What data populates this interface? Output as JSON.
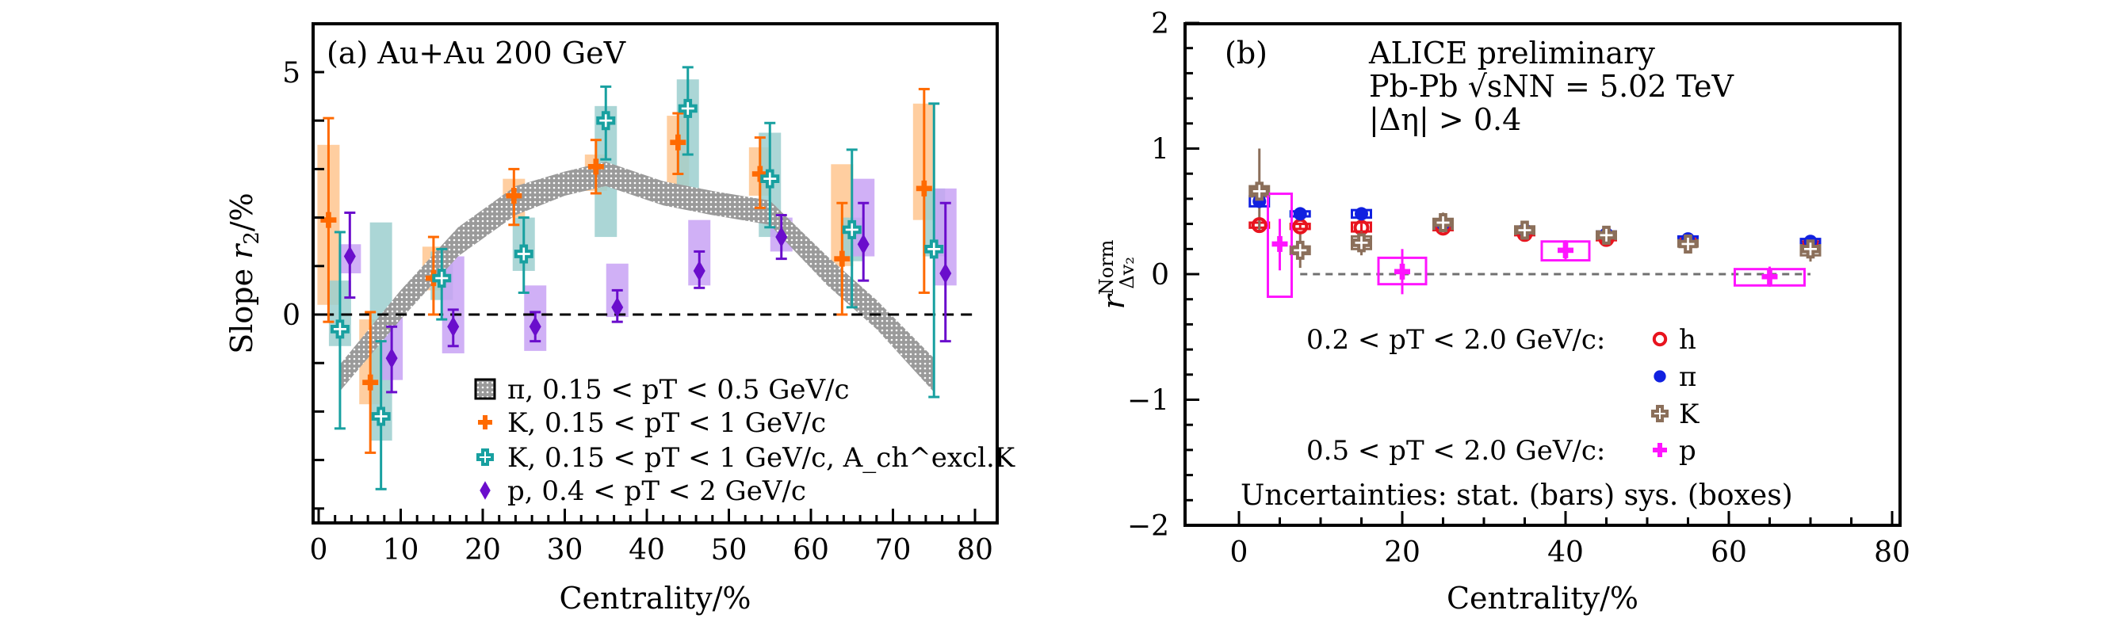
{
  "chart_data": [
    {
      "type": "scatter",
      "panel_label": "(a) Au+Au 200 GeV",
      "title": "",
      "xlabel": "Centrality/%",
      "ylabel": "Slope r2/%",
      "xlim": [
        -2,
        82
      ],
      "ylim": [
        -4.3,
        6.0
      ],
      "xticks": [
        0,
        10,
        20,
        30,
        40,
        50,
        60,
        70,
        80
      ],
      "xtick_labels": [
        "0",
        "10",
        "20",
        "30",
        "40",
        "50",
        "60",
        "70",
        "80"
      ],
      "yticks_labeled": [
        0,
        5
      ],
      "ytick_labels": [
        "0",
        "5"
      ],
      "reference_line": 0,
      "legend_position": "bottom-right",
      "band": {
        "name": "π, 0.15 < pT < 0.5 GeV/c",
        "color": "#9a9a9a",
        "x": [
          2.5,
          10,
          17,
          24,
          30,
          35,
          42,
          48,
          55,
          62,
          68,
          75
        ],
        "lower": [
          -1.6,
          -0.1,
          1.2,
          2.05,
          2.45,
          2.65,
          2.25,
          2.05,
          1.85,
          0.6,
          -0.3,
          -1.6
        ],
        "upper": [
          -1.05,
          0.5,
          1.8,
          2.65,
          2.95,
          3.15,
          2.75,
          2.55,
          2.35,
          1.2,
          0.3,
          -0.9
        ]
      },
      "series": [
        {
          "name": "K, 0.15 < pT < 1 GeV/c",
          "marker": "filled-cross",
          "color": "#ff6a00",
          "sys_color": "#ffc58f",
          "points": [
            {
              "x": 1.2,
              "y": 1.95,
              "stat": [
                -0.15,
                4.05
              ],
              "sys": [
                0.2,
                3.5
              ]
            },
            {
              "x": 6.3,
              "y": -1.4,
              "stat": [
                -2.85,
                0.05
              ],
              "sys": [
                -1.85,
                -0.1
              ]
            },
            {
              "x": 14.0,
              "y": 0.75,
              "stat": [
                0.0,
                1.6
              ],
              "sys": [
                0.5,
                1.4
              ]
            },
            {
              "x": 23.8,
              "y": 2.45,
              "stat": [
                1.85,
                3.0
              ],
              "sys": [
                2.0,
                2.8
              ]
            },
            {
              "x": 33.8,
              "y": 3.05,
              "stat": [
                2.5,
                3.6
              ],
              "sys": [
                2.55,
                3.3
              ]
            },
            {
              "x": 43.8,
              "y": 3.55,
              "stat": [
                2.9,
                4.15
              ],
              "sys": [
                2.5,
                4.1
              ]
            },
            {
              "x": 53.8,
              "y": 2.9,
              "stat": [
                2.2,
                3.65
              ],
              "sys": [
                2.45,
                3.45
              ]
            },
            {
              "x": 63.8,
              "y": 1.15,
              "stat": [
                0.0,
                2.3
              ],
              "sys": [
                1.0,
                3.1
              ]
            },
            {
              "x": 73.8,
              "y": 2.6,
              "stat": [
                0.45,
                4.65
              ],
              "sys": [
                1.95,
                4.35
              ]
            }
          ]
        },
        {
          "name": "K, 0.15 < pT < 1 GeV/c, A_ch^excl.K",
          "marker": "open-cross",
          "color": "#18a0a0",
          "sys_color": "#9ccfcf",
          "points": [
            {
              "x": 2.6,
              "y": -0.3,
              "stat": [
                -2.35,
                1.7
              ],
              "sys": [
                -0.65,
                0.7
              ]
            },
            {
              "x": 7.6,
              "y": -2.1,
              "stat": [
                -3.6,
                -0.55
              ],
              "sys": [
                -2.6,
                1.9
              ]
            },
            {
              "x": 15.0,
              "y": 0.75,
              "stat": [
                -0.1,
                1.35
              ],
              "sys": [
                0.3,
                1.3
              ]
            },
            {
              "x": 25.0,
              "y": 1.25,
              "stat": [
                0.45,
                2.0
              ],
              "sys": [
                0.9,
                2.0
              ]
            },
            {
              "x": 35.0,
              "y": 4.0,
              "stat": [
                3.2,
                4.7
              ],
              "sys": [
                1.6,
                4.3
              ]
            },
            {
              "x": 45.0,
              "y": 4.25,
              "stat": [
                3.3,
                5.1
              ],
              "sys": [
                2.2,
                4.85
              ]
            },
            {
              "x": 55.0,
              "y": 2.8,
              "stat": [
                1.8,
                3.95
              ],
              "sys": [
                1.6,
                3.75
              ]
            },
            {
              "x": 65.0,
              "y": 1.75,
              "stat": [
                0.15,
                3.4
              ],
              "sys": [
                1.1,
                2.0
              ]
            },
            {
              "x": 75.0,
              "y": 1.35,
              "stat": [
                -1.7,
                4.35
              ],
              "sys": [
                1.2,
                2.6
              ]
            }
          ]
        },
        {
          "name": "p, 0.4 < pT < 2 GeV/c",
          "marker": "diamond",
          "color": "#6a0dcc",
          "sys_color": "#c8a2f5",
          "points": [
            {
              "x": 3.8,
              "y": 1.2,
              "stat": [
                0.35,
                2.1
              ],
              "sys": [
                0.85,
                1.45
              ]
            },
            {
              "x": 8.9,
              "y": -0.9,
              "stat": [
                -1.6,
                -0.25
              ],
              "sys": [
                -1.35,
                -0.05
              ]
            },
            {
              "x": 16.4,
              "y": -0.25,
              "stat": [
                -0.65,
                0.1
              ],
              "sys": [
                -0.8,
                1.2
              ]
            },
            {
              "x": 26.4,
              "y": -0.25,
              "stat": [
                -0.55,
                0.05
              ],
              "sys": [
                -0.75,
                0.6
              ]
            },
            {
              "x": 36.4,
              "y": 0.15,
              "stat": [
                -0.15,
                0.5
              ],
              "sys": [
                -0.05,
                1.05
              ]
            },
            {
              "x": 46.4,
              "y": 0.9,
              "stat": [
                0.55,
                1.3
              ],
              "sys": [
                0.6,
                1.95
              ]
            },
            {
              "x": 56.4,
              "y": 1.6,
              "stat": [
                1.15,
                2.05
              ],
              "sys": [
                1.3,
                2.0
              ]
            },
            {
              "x": 66.4,
              "y": 1.45,
              "stat": [
                0.7,
                2.3
              ],
              "sys": [
                1.2,
                2.8
              ]
            },
            {
              "x": 76.4,
              "y": 0.85,
              "stat": [
                -0.55,
                2.3
              ],
              "sys": [
                0.6,
                2.6
              ]
            }
          ]
        }
      ],
      "legend": [
        {
          "symbol": "band",
          "text": "π, 0.15 < pT < 0.5 GeV/c"
        },
        {
          "symbol": "filled-cross",
          "text": "K, 0.15 < pT < 1 GeV/c"
        },
        {
          "symbol": "open-cross",
          "text": "K, 0.15 < pT < 1 GeV/c, A_ch^excl.K"
        },
        {
          "symbol": "diamond",
          "text": "p, 0.4 < pT < 2 GeV/c"
        }
      ]
    },
    {
      "type": "scatter",
      "panel_label": "(b)",
      "annotations": [
        "ALICE preliminary",
        "Pb-Pb √sNN = 5.02 TeV",
        "|Δη| > 0.4"
      ],
      "title": "",
      "xlabel": "Centrality/%",
      "ylabel": "r^Norm_Δv2",
      "xlim": [
        -3,
        82
      ],
      "ylim": [
        -2,
        2
      ],
      "xticks": [
        0,
        20,
        40,
        60,
        80
      ],
      "xtick_labels": [
        "0",
        "20",
        "40",
        "60",
        "80"
      ],
      "yticks": [
        -2,
        -1,
        0,
        1,
        2
      ],
      "ytick_labels": [
        "−2",
        "−1",
        "0",
        "1",
        "2"
      ],
      "reference_line": 0,
      "legend_position": "bottom-center",
      "legend_groups": [
        {
          "label": "0.2 < pT < 2.0 GeV/c:",
          "entries": [
            "h",
            "π",
            "K"
          ]
        },
        {
          "label": "0.5 < pT < 2.0 GeV/c:",
          "entries": [
            "p"
          ]
        }
      ],
      "footnote": "Uncertainties: stat. (bars) sys. (boxes)",
      "series": [
        {
          "name": "h",
          "marker": "open-circle",
          "color": "#e8141e",
          "points": [
            {
              "x": 2.5,
              "y": 0.39,
              "stat": [
                0.36,
                0.42
              ],
              "sys": [
                0.37,
                0.41
              ]
            },
            {
              "x": 7.5,
              "y": 0.38,
              "stat": [
                0.35,
                0.41
              ],
              "sys": [
                0.36,
                0.4
              ]
            },
            {
              "x": 15,
              "y": 0.37,
              "stat": [
                0.34,
                0.4
              ],
              "sys": [
                0.34,
                0.41
              ]
            },
            {
              "x": 25,
              "y": 0.37,
              "stat": [
                0.34,
                0.4
              ],
              "sys": [
                0.35,
                0.39
              ]
            },
            {
              "x": 35,
              "y": 0.32,
              "stat": [
                0.29,
                0.35
              ],
              "sys": [
                0.31,
                0.34
              ]
            },
            {
              "x": 45,
              "y": 0.28,
              "stat": [
                0.25,
                0.31
              ],
              "sys": [
                0.27,
                0.3
              ]
            },
            {
              "x": 55,
              "y": 0.26,
              "stat": [
                0.23,
                0.29
              ],
              "sys": [
                0.24,
                0.28
              ]
            },
            {
              "x": 70,
              "y": 0.24,
              "stat": [
                0.2,
                0.28
              ],
              "sys": [
                0.21,
                0.26
              ]
            }
          ]
        },
        {
          "name": "π",
          "marker": "filled-circle",
          "color": "#1020e0",
          "points": [
            {
              "x": 2.5,
              "y": 0.58,
              "stat": [
                0.55,
                0.62
              ],
              "sys": [
                0.54,
                0.62
              ]
            },
            {
              "x": 7.5,
              "y": 0.48,
              "stat": [
                0.45,
                0.51
              ],
              "sys": [
                0.46,
                0.5
              ]
            },
            {
              "x": 15,
              "y": 0.48,
              "stat": [
                0.45,
                0.51
              ],
              "sys": [
                0.45,
                0.51
              ]
            },
            {
              "x": 25,
              "y": 0.4,
              "stat": [
                0.37,
                0.43
              ],
              "sys": [
                0.38,
                0.42
              ]
            },
            {
              "x": 35,
              "y": 0.35,
              "stat": [
                0.32,
                0.38
              ],
              "sys": [
                0.33,
                0.37
              ]
            },
            {
              "x": 45,
              "y": 0.32,
              "stat": [
                0.29,
                0.35
              ],
              "sys": [
                0.3,
                0.34
              ]
            },
            {
              "x": 55,
              "y": 0.28,
              "stat": [
                0.25,
                0.31
              ],
              "sys": [
                0.26,
                0.3
              ]
            },
            {
              "x": 70,
              "y": 0.26,
              "stat": [
                0.22,
                0.3
              ],
              "sys": [
                0.24,
                0.28
              ]
            }
          ]
        },
        {
          "name": "K",
          "marker": "open-cross",
          "color": "#8b6f5a",
          "points": [
            {
              "x": 2.5,
              "y": 0.66,
              "stat": [
                0.35,
                1.0
              ],
              "sys": [
                0.62,
                0.7
              ]
            },
            {
              "x": 7.5,
              "y": 0.19,
              "stat": [
                0.05,
                0.32
              ],
              "sys": [
                0.16,
                0.22
              ]
            },
            {
              "x": 15,
              "y": 0.25,
              "stat": [
                0.15,
                0.34
              ],
              "sys": [
                0.2,
                0.3
              ]
            },
            {
              "x": 25,
              "y": 0.41,
              "stat": [
                0.34,
                0.49
              ],
              "sys": [
                0.36,
                0.44
              ]
            },
            {
              "x": 35,
              "y": 0.35,
              "stat": [
                0.3,
                0.4
              ],
              "sys": [
                0.32,
                0.38
              ]
            },
            {
              "x": 45,
              "y": 0.31,
              "stat": [
                0.27,
                0.36
              ],
              "sys": [
                0.28,
                0.34
              ]
            },
            {
              "x": 55,
              "y": 0.24,
              "stat": [
                0.2,
                0.28
              ],
              "sys": [
                0.22,
                0.27
              ]
            },
            {
              "x": 70,
              "y": 0.2,
              "stat": [
                0.1,
                0.31
              ],
              "sys": [
                0.15,
                0.23
              ]
            }
          ]
        },
        {
          "name": "p",
          "marker": "filled-cross",
          "color": "#ff14ff",
          "points": [
            {
              "x": 5,
              "y": 0.24,
              "stat": [
                0.03,
                0.44
              ],
              "sys": [
                -0.18,
                0.64
              ]
            },
            {
              "x": 20,
              "y": 0.02,
              "stat": [
                -0.16,
                0.2
              ],
              "sys": [
                -0.08,
                0.13
              ]
            },
            {
              "x": 40,
              "y": 0.19,
              "stat": [
                0.11,
                0.27
              ],
              "sys": [
                0.11,
                0.26
              ]
            },
            {
              "x": 65,
              "y": -0.02,
              "stat": [
                -0.1,
                0.06
              ],
              "sys": [
                -0.09,
                0.04
              ]
            }
          ]
        }
      ]
    }
  ]
}
